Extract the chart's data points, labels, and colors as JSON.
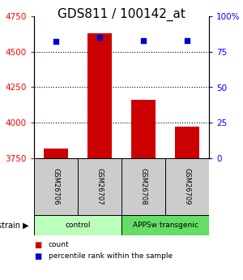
{
  "title": "GDS811 / 100142_at",
  "samples": [
    "GSM26706",
    "GSM26707",
    "GSM26708",
    "GSM26709"
  ],
  "counts": [
    3820,
    4630,
    4160,
    3970
  ],
  "percentiles": [
    82,
    85,
    83,
    83
  ],
  "ylim_left": [
    3750,
    4750
  ],
  "ylim_right": [
    0,
    100
  ],
  "yticks_left": [
    3750,
    4000,
    4250,
    4500,
    4750
  ],
  "yticks_right": [
    0,
    25,
    50,
    75,
    100
  ],
  "ytick_labels_right": [
    "0",
    "25",
    "50",
    "75",
    "100%"
  ],
  "groups": [
    {
      "label": "control",
      "indices": [
        0,
        1
      ],
      "color": "#bbffbb"
    },
    {
      "label": "APPSw transgenic",
      "indices": [
        2,
        3
      ],
      "color": "#66dd66"
    }
  ],
  "bar_color": "#cc0000",
  "dot_color": "#0000cc",
  "bar_width": 0.55,
  "background_color": "#ffffff",
  "title_fontsize": 11,
  "tick_fontsize": 7.5,
  "sample_box_color": "#cccccc",
  "grid_ticks_pct": [
    25,
    50,
    75
  ],
  "grid_ticks_count": [
    4000,
    4250,
    4500
  ]
}
